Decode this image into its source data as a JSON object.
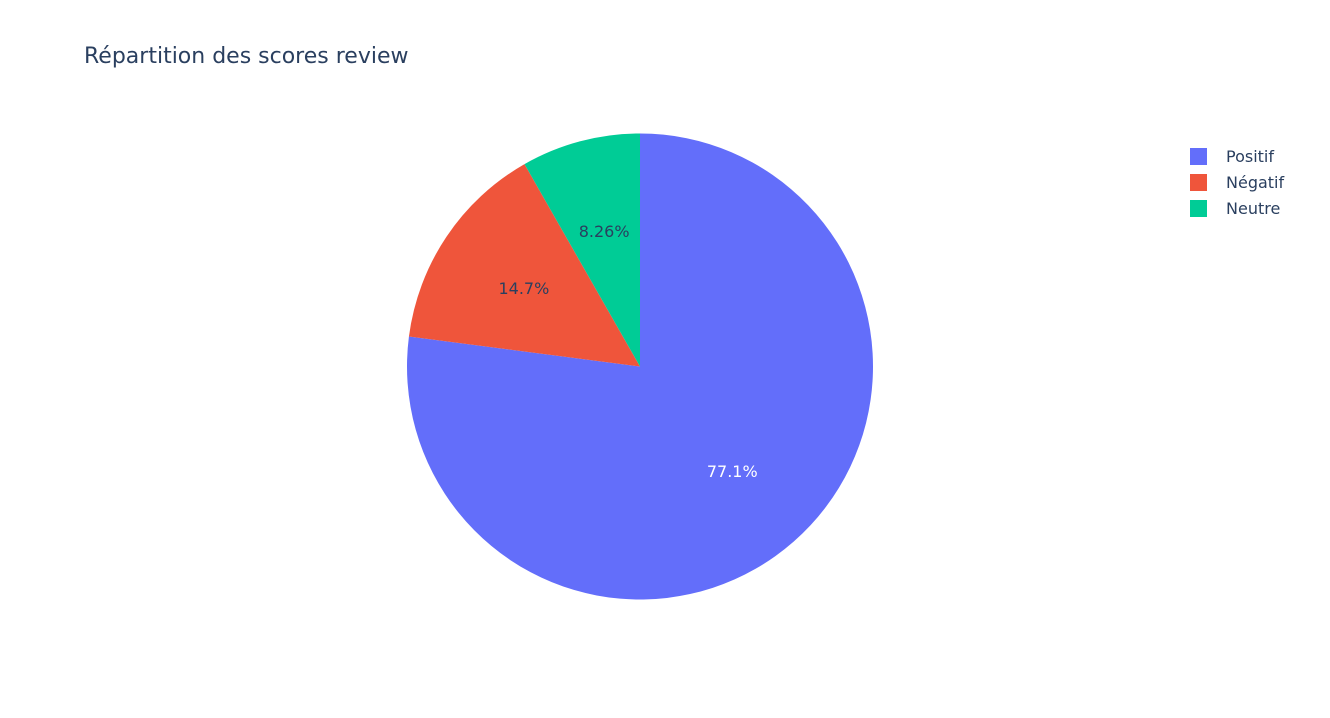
{
  "chart_data": {
    "type": "pie",
    "title": "Répartition des scores review",
    "slices": [
      {
        "label": "Positif",
        "value": 77.1,
        "text": "77.1%",
        "color": "#636efa",
        "text_color": "#ffffff"
      },
      {
        "label": "Négatif",
        "value": 14.7,
        "text": "14.7%",
        "color": "#ef553b",
        "text_color": "#2a3f5f"
      },
      {
        "label": "Neutre",
        "value": 8.26,
        "text": "8.26%",
        "color": "#00cc96",
        "text_color": "#2a3f5f"
      }
    ],
    "direction": "clockwise",
    "legend_position": "top-right"
  }
}
